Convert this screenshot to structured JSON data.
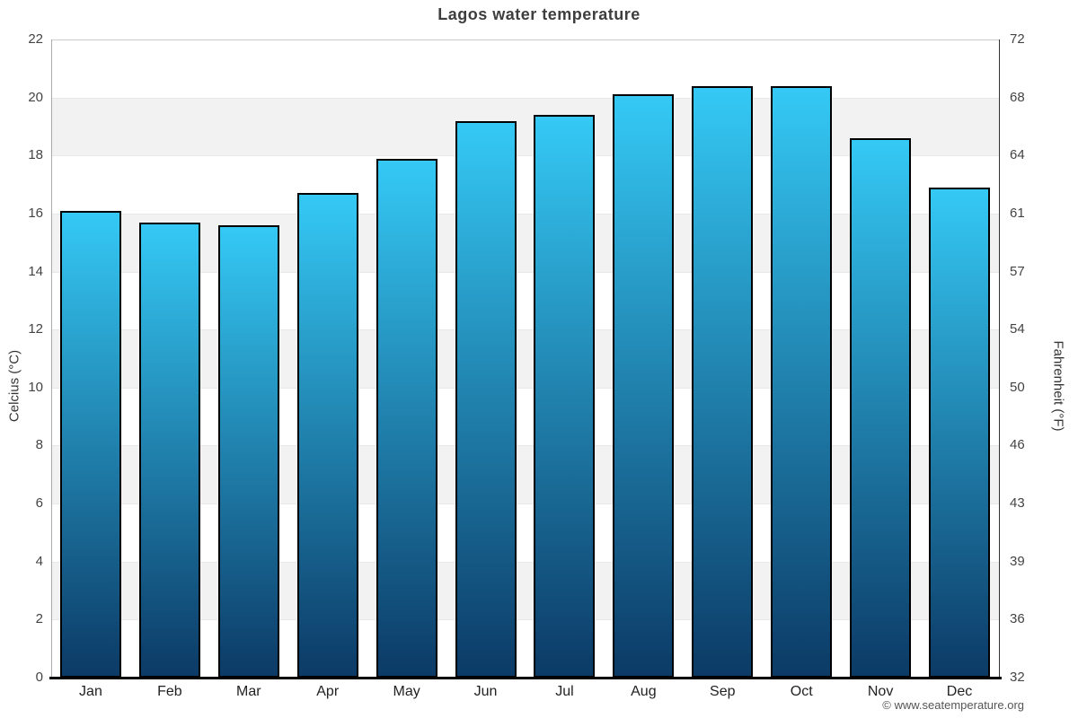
{
  "chart_data": {
    "type": "bar",
    "title": "Lagos water temperature",
    "categories": [
      "Jan",
      "Feb",
      "Mar",
      "Apr",
      "May",
      "Jun",
      "Jul",
      "Aug",
      "Sep",
      "Oct",
      "Nov",
      "Dec"
    ],
    "values": [
      16.1,
      15.7,
      15.6,
      16.7,
      17.9,
      19.2,
      19.4,
      20.1,
      20.4,
      20.4,
      18.6,
      16.9
    ],
    "series_name": "Water temperature (°C)",
    "ylabel_left": "Celcius (°C)",
    "ylabel_right": "Fahrenheit (°F)",
    "yticks_left": [
      22,
      20,
      18,
      16,
      14,
      12,
      10,
      8,
      6,
      4,
      2,
      0
    ],
    "yticks_right": [
      72,
      68,
      64,
      61,
      57,
      54,
      50,
      46,
      43,
      39,
      36,
      32
    ],
    "ylim": [
      0,
      22
    ],
    "grid": "alternating horizontal bands every 2 degrees",
    "legend": "none"
  },
  "footer": {
    "credit": "© www.seatemperature.org"
  },
  "colors": {
    "bar_gradient_top": "#35C9F5",
    "bar_gradient_bottom": "#0C3A66",
    "bar_border": "#000000",
    "band_gray": "#F2F2F2",
    "band_white": "#FFFFFF",
    "gridline": "#E8E8E8",
    "top_gridline": "#CCCCCC",
    "left_spine": "#AAAAAA",
    "right_spine": "#333333",
    "bottom_axis": "#000000",
    "title_color": "#3E3E3E",
    "tick_color": "#444444",
    "footer_color": "#555555"
  }
}
